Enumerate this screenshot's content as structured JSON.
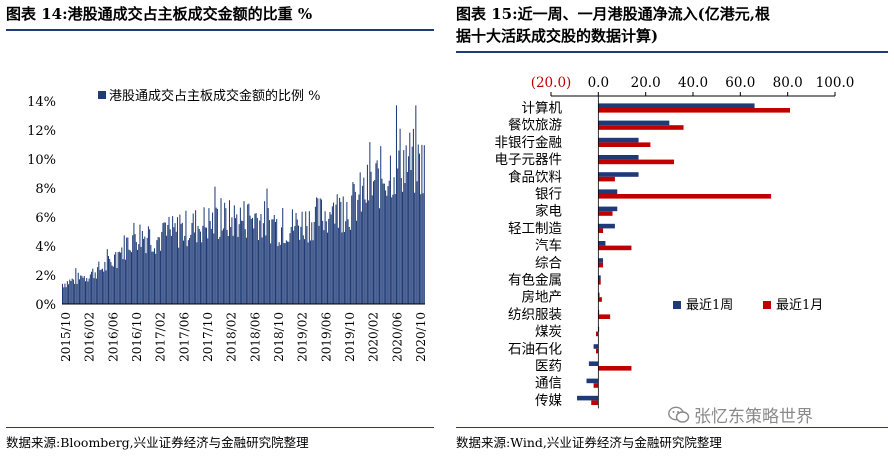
{
  "left_panel": {
    "title": "图表 14:港股通成交占主板成交金额的比重 %",
    "source": "数据来源:Bloomberg,兴业证券经济与金融研究院整理"
  },
  "right_panel": {
    "title_line1": "图表 15:近一周、一月港股通净流入(亿港元,根",
    "title_line2": "据十大活跃成交股的数据计算)",
    "source": "数据来源:Wind,兴业证券经济与金融研究院整理"
  },
  "watermark": {
    "text": "张忆东策略世界",
    "icon": "wechat-icon"
  },
  "colors": {
    "navy": "#1f3b77",
    "red": "#c00000",
    "rule": "#1f3b77"
  },
  "chart_data": [
    {
      "type": "bar",
      "legend": "港股通成交占主板成交金额的比例 %",
      "legend_position": "top-left",
      "x_tick_labels": [
        "2015/10",
        "2016/02",
        "2016/06",
        "2016/10",
        "2017/02",
        "2017/06",
        "2017/10",
        "2018/02",
        "2018/06",
        "2018/10",
        "2019/02",
        "2019/06",
        "2019/10",
        "2020/02",
        "2020/06",
        "2020/10"
      ],
      "y_tick_labels": [
        "0%",
        "2%",
        "4%",
        "6%",
        "8%",
        "10%",
        "12%",
        "14%"
      ],
      "ylim": [
        0,
        14
      ],
      "series_anchor_months": [
        "2015/10",
        "2016/02",
        "2016/06",
        "2016/10",
        "2017/02",
        "2017/06",
        "2017/10",
        "2018/02",
        "2018/06",
        "2018/10",
        "2019/02",
        "2019/06",
        "2019/10",
        "2020/02",
        "2020/06",
        "2020/10"
      ],
      "series_anchor_levels": [
        1.3,
        1.8,
        2.6,
        4.5,
        4.2,
        4.8,
        5.2,
        5.4,
        5.6,
        4.9,
        5.2,
        5.8,
        6.3,
        7.8,
        9.3,
        8.8
      ],
      "color": "#1f3b77",
      "grid": false
    },
    {
      "type": "bar",
      "orientation": "horizontal",
      "categories": [
        "计算机",
        "餐饮旅游",
        "非银行金融",
        "电子元器件",
        "食品饮料",
        "银行",
        "家电",
        "轻工制造",
        "汽车",
        "综合",
        "有色金属",
        "房地产",
        "纺织服装",
        "煤炭",
        "石油石化",
        "医药",
        "通信",
        "传媒"
      ],
      "series": [
        {
          "name": "最近1周",
          "color": "#1f3b77",
          "values": [
            66,
            30,
            17,
            17,
            17,
            8,
            8,
            7,
            3,
            2,
            1,
            0.5,
            0,
            0,
            -2,
            -4,
            -5,
            -9
          ]
        },
        {
          "name": "最近1月",
          "color": "#c00000",
          "values": [
            81,
            36,
            22,
            32,
            7,
            73,
            6,
            2,
            14,
            2,
            1,
            1.5,
            5,
            -1,
            -1,
            14,
            -2,
            -3
          ]
        }
      ],
      "x_tick_labels": [
        "(20.0)",
        "0.0",
        "20.0",
        "40.0",
        "60.0",
        "80.0",
        "100.0"
      ],
      "xlim": [
        -20,
        100
      ],
      "legend_position": "center-right",
      "grid": false
    }
  ]
}
